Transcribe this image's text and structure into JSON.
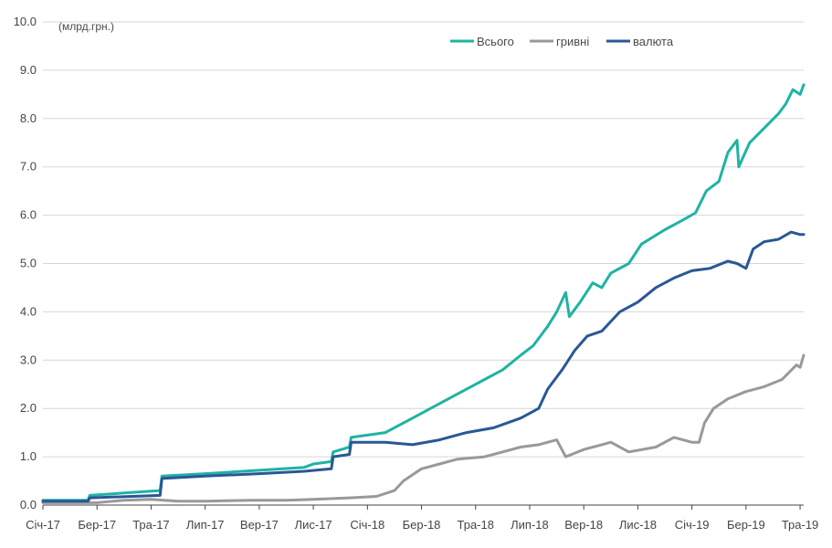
{
  "chart_data": {
    "type": "line",
    "title": "",
    "unit_label": "(млрд.грн.)",
    "xlabel": "",
    "ylabel": "",
    "ylim": [
      0,
      10
    ],
    "grid": true,
    "legend_position": "top-center",
    "y_ticks": [
      "0.0",
      "1.0",
      "2.0",
      "3.0",
      "4.0",
      "5.0",
      "6.0",
      "7.0",
      "8.0",
      "9.0",
      "10.0"
    ],
    "x_ticks": [
      {
        "x": 0,
        "label": "Січ-17"
      },
      {
        "x": 3,
        "label": "Бер-17"
      },
      {
        "x": 6,
        "label": "Тра-17"
      },
      {
        "x": 9,
        "label": "Лип-17"
      },
      {
        "x": 12,
        "label": "Вер-17"
      },
      {
        "x": 15,
        "label": "Лис-17"
      },
      {
        "x": 18,
        "label": "Січ-18"
      },
      {
        "x": 21,
        "label": "Бер-18"
      },
      {
        "x": 24,
        "label": "Тра-18"
      },
      {
        "x": 27,
        "label": "Лип-18"
      },
      {
        "x": 30,
        "label": "Вер-18"
      },
      {
        "x": 33,
        "label": "Лис-18"
      },
      {
        "x": 36,
        "label": "Січ-19"
      },
      {
        "x": 39,
        "label": "Бер-19"
      },
      {
        "x": 42,
        "label": "Тра-19"
      }
    ],
    "x_range": [
      0,
      42.2
    ],
    "series": [
      {
        "name": "Всього",
        "color": "#1fb3a3",
        "points": [
          [
            0,
            0.1
          ],
          [
            2.5,
            0.1
          ],
          [
            2.6,
            0.2
          ],
          [
            4.5,
            0.25
          ],
          [
            6.5,
            0.3
          ],
          [
            6.6,
            0.6
          ],
          [
            9,
            0.65
          ],
          [
            12,
            0.72
          ],
          [
            14.5,
            0.78
          ],
          [
            15,
            0.85
          ],
          [
            16,
            0.9
          ],
          [
            16.1,
            1.1
          ],
          [
            17,
            1.2
          ],
          [
            17.1,
            1.4
          ],
          [
            19,
            1.5
          ],
          [
            20.5,
            1.8
          ],
          [
            21.5,
            2.0
          ],
          [
            23,
            2.3
          ],
          [
            24.5,
            2.6
          ],
          [
            25.5,
            2.8
          ],
          [
            26.5,
            3.1
          ],
          [
            27.2,
            3.3
          ],
          [
            28,
            3.7
          ],
          [
            28.5,
            4.0
          ],
          [
            29,
            4.4
          ],
          [
            29.2,
            3.9
          ],
          [
            29.8,
            4.2
          ],
          [
            30.5,
            4.6
          ],
          [
            31,
            4.5
          ],
          [
            31.5,
            4.8
          ],
          [
            32.5,
            5.0
          ],
          [
            33.2,
            5.4
          ],
          [
            34.5,
            5.7
          ],
          [
            35.5,
            5.9
          ],
          [
            36.2,
            6.05
          ],
          [
            36.8,
            6.5
          ],
          [
            37.5,
            6.7
          ],
          [
            38,
            7.3
          ],
          [
            38.5,
            7.55
          ],
          [
            38.6,
            7.0
          ],
          [
            39.2,
            7.5
          ],
          [
            40,
            7.8
          ],
          [
            40.8,
            8.1
          ],
          [
            41.2,
            8.3
          ],
          [
            41.6,
            8.6
          ],
          [
            42,
            8.5
          ],
          [
            42.2,
            8.7
          ]
        ]
      },
      {
        "name": "гривні",
        "color": "#999999",
        "points": [
          [
            0,
            0.05
          ],
          [
            3,
            0.05
          ],
          [
            4.5,
            0.1
          ],
          [
            6,
            0.12
          ],
          [
            7.5,
            0.08
          ],
          [
            9,
            0.08
          ],
          [
            11.5,
            0.1
          ],
          [
            13.5,
            0.1
          ],
          [
            15,
            0.12
          ],
          [
            17,
            0.15
          ],
          [
            18.5,
            0.18
          ],
          [
            19.5,
            0.3
          ],
          [
            20,
            0.5
          ],
          [
            21,
            0.75
          ],
          [
            22,
            0.85
          ],
          [
            23,
            0.95
          ],
          [
            24.5,
            1.0
          ],
          [
            25.5,
            1.1
          ],
          [
            26.5,
            1.2
          ],
          [
            27.5,
            1.25
          ],
          [
            28.5,
            1.35
          ],
          [
            29,
            1.0
          ],
          [
            30,
            1.15
          ],
          [
            31,
            1.25
          ],
          [
            31.5,
            1.3
          ],
          [
            32.5,
            1.1
          ],
          [
            34,
            1.2
          ],
          [
            35,
            1.4
          ],
          [
            36,
            1.3
          ],
          [
            36.4,
            1.3
          ],
          [
            36.7,
            1.7
          ],
          [
            37.2,
            2.0
          ],
          [
            38,
            2.2
          ],
          [
            39,
            2.35
          ],
          [
            40,
            2.45
          ],
          [
            41,
            2.6
          ],
          [
            41.8,
            2.9
          ],
          [
            42,
            2.85
          ],
          [
            42.2,
            3.1
          ]
        ]
      },
      {
        "name": "валюта",
        "color": "#2a5794",
        "points": [
          [
            0,
            0.08
          ],
          [
            2.5,
            0.08
          ],
          [
            2.6,
            0.15
          ],
          [
            6.5,
            0.2
          ],
          [
            6.6,
            0.55
          ],
          [
            9,
            0.6
          ],
          [
            12,
            0.65
          ],
          [
            14.5,
            0.7
          ],
          [
            16,
            0.75
          ],
          [
            16.1,
            1.0
          ],
          [
            17,
            1.05
          ],
          [
            17.1,
            1.3
          ],
          [
            19,
            1.3
          ],
          [
            20.5,
            1.25
          ],
          [
            22,
            1.35
          ],
          [
            23.5,
            1.5
          ],
          [
            25,
            1.6
          ],
          [
            26.5,
            1.8
          ],
          [
            27.5,
            2.0
          ],
          [
            28,
            2.4
          ],
          [
            28.8,
            2.8
          ],
          [
            29.5,
            3.2
          ],
          [
            30.2,
            3.5
          ],
          [
            31,
            3.6
          ],
          [
            32,
            4.0
          ],
          [
            33,
            4.2
          ],
          [
            34,
            4.5
          ],
          [
            35,
            4.7
          ],
          [
            36,
            4.85
          ],
          [
            37,
            4.9
          ],
          [
            38,
            5.05
          ],
          [
            38.5,
            5.0
          ],
          [
            39,
            4.9
          ],
          [
            39.4,
            5.3
          ],
          [
            40,
            5.45
          ],
          [
            40.8,
            5.5
          ],
          [
            41.5,
            5.65
          ],
          [
            42,
            5.6
          ],
          [
            42.2,
            5.6
          ]
        ]
      }
    ]
  }
}
